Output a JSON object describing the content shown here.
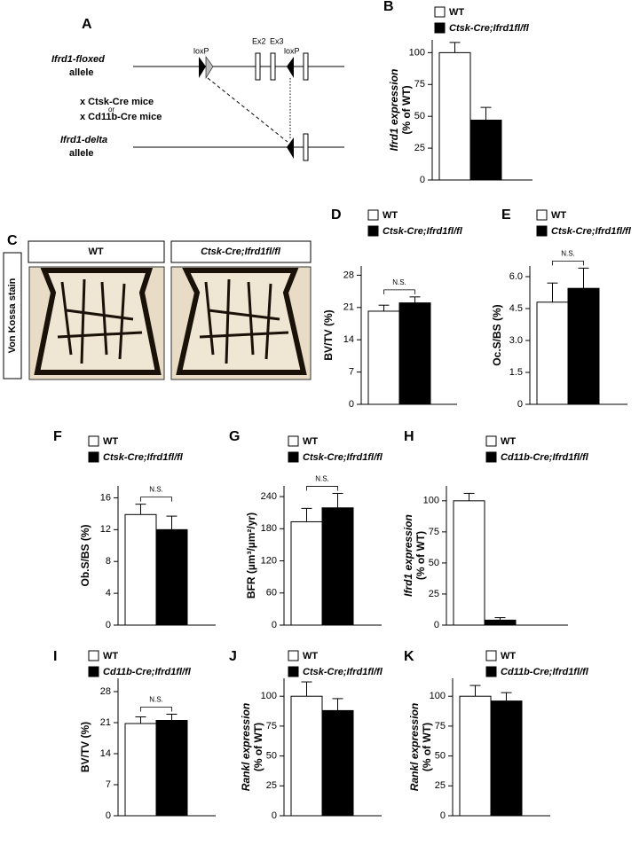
{
  "panel_a": {
    "label": "A",
    "floxed_allele": [
      "Ifrd1-floxed",
      "allele"
    ],
    "loxp": [
      "loxP",
      "loxP"
    ],
    "exons": [
      "Ex2",
      "Ex3"
    ],
    "crosses": [
      "x Ctsk-Cre mice",
      "or",
      "x Cd11b-Cre mice"
    ],
    "delta_allele": [
      "Ifrd1-delta",
      "allele"
    ]
  },
  "panel_c": {
    "label": "C",
    "stain": "Von Kossa stain",
    "images": [
      "WT",
      "Ctsk-Cre;Ifrd1fl/fl"
    ]
  },
  "chart_data": [
    {
      "type": "bar",
      "panel": "B",
      "ylabel": [
        "Ifrd1 expression",
        "(% of WT)"
      ],
      "ylim": [
        0,
        110
      ],
      "yticks": [
        0,
        25,
        50,
        75,
        100
      ],
      "series": [
        {
          "name": "WT",
          "color": "#ffffff",
          "values": [
            100
          ],
          "errors": [
            8
          ]
        },
        {
          "name": "Ctsk-Cre;Ifrd1fl/fl",
          "color": "#000000",
          "values": [
            47
          ],
          "errors": [
            10
          ]
        }
      ]
    },
    {
      "type": "bar",
      "panel": "D",
      "ylabel": "BV/TV (%)",
      "ylim": [
        0,
        30
      ],
      "yticks": [
        0,
        7,
        14,
        21,
        28
      ],
      "annotation": "N.S.",
      "series": [
        {
          "name": "WT",
          "color": "#ffffff",
          "values": [
            20.2
          ],
          "errors": [
            1.3
          ]
        },
        {
          "name": "Ctsk-Cre;Ifrd1fl/fl",
          "color": "#000000",
          "values": [
            22
          ],
          "errors": [
            1.3
          ]
        }
      ]
    },
    {
      "type": "bar",
      "panel": "E",
      "ylabel": "Oc.S/BS (%)",
      "ylim": [
        0,
        6.5
      ],
      "yticks": [
        0,
        1.5,
        {
          "value": 3,
          "label": "3.0"
        },
        4.5,
        {
          "value": 6,
          "label": "6.0"
        }
      ],
      "annotation": "N.S.",
      "series": [
        {
          "name": "WT",
          "color": "#ffffff",
          "values": [
            4.8
          ],
          "errors": [
            0.9
          ]
        },
        {
          "name": "Ctsk-Cre;Ifrd1fl/fl",
          "color": "#000000",
          "values": [
            5.45
          ],
          "errors": [
            0.95
          ]
        }
      ]
    },
    {
      "type": "bar",
      "panel": "F",
      "ylabel": "Ob.S/BS (%)",
      "ylim": [
        0,
        17.5
      ],
      "yticks": [
        0,
        4,
        8,
        12,
        16
      ],
      "annotation": "N.S.",
      "series": [
        {
          "name": "WT",
          "color": "#ffffff",
          "values": [
            13.9
          ],
          "errors": [
            1.3
          ]
        },
        {
          "name": "Ctsk-Cre;Ifrd1fl/fl",
          "color": "#000000",
          "values": [
            12
          ],
          "errors": [
            1.7
          ]
        }
      ]
    },
    {
      "type": "bar",
      "panel": "G",
      "ylabel": "BFR (µm³/µm²/yr)",
      "ylim": [
        0,
        260
      ],
      "yticks": [
        0,
        60,
        120,
        180,
        240
      ],
      "annotation": "N.S.",
      "series": [
        {
          "name": "WT",
          "color": "#ffffff",
          "values": [
            193
          ],
          "errors": [
            25
          ]
        },
        {
          "name": "Ctsk-Cre;Ifrd1fl/fl",
          "color": "#000000",
          "values": [
            219
          ],
          "errors": [
            27
          ]
        }
      ]
    },
    {
      "type": "bar",
      "panel": "H",
      "ylabel": [
        "Ifrd1 expression",
        "(% of WT)"
      ],
      "ylim": [
        0,
        112
      ],
      "yticks": [
        0,
        25,
        50,
        75,
        100
      ],
      "series": [
        {
          "name": "WT",
          "color": "#ffffff",
          "values": [
            100
          ],
          "errors": [
            6
          ]
        },
        {
          "name": "Cd11b-Cre;Ifrd1fl/fl",
          "color": "#000000",
          "values": [
            4
          ],
          "errors": [
            2
          ]
        }
      ]
    },
    {
      "type": "bar",
      "panel": "I",
      "ylabel": "BV/TV (%)",
      "ylim": [
        0,
        31
      ],
      "yticks": [
        0,
        7,
        14,
        21,
        28
      ],
      "annotation": "N.S.",
      "series": [
        {
          "name": "WT",
          "color": "#ffffff",
          "values": [
            20.8
          ],
          "errors": [
            1.5
          ]
        },
        {
          "name": "Cd11b-Cre;Ifrd1fl/fl",
          "color": "#000000",
          "values": [
            21.5
          ],
          "errors": [
            1.4
          ]
        }
      ]
    },
    {
      "type": "bar",
      "panel": "J",
      "ylabel": [
        "Rankl expression",
        "(% of WT)"
      ],
      "ylim": [
        0,
        115
      ],
      "yticks": [
        0,
        25,
        50,
        75,
        100
      ],
      "series": [
        {
          "name": "WT",
          "color": "#ffffff",
          "values": [
            100
          ],
          "errors": [
            12
          ]
        },
        {
          "name": "Ctsk-Cre;Ifrd1fl/fl",
          "color": "#000000",
          "values": [
            88
          ],
          "errors": [
            10
          ]
        }
      ]
    },
    {
      "type": "bar",
      "panel": "K",
      "ylabel": [
        "Rankl expression",
        "(% of WT)"
      ],
      "ylim": [
        0,
        115
      ],
      "yticks": [
        0,
        25,
        50,
        75,
        100
      ],
      "series": [
        {
          "name": "WT",
          "color": "#ffffff",
          "values": [
            100
          ],
          "errors": [
            9
          ]
        },
        {
          "name": "Cd11b-Cre;Ifrd1fl/fl",
          "color": "#000000",
          "values": [
            96
          ],
          "errors": [
            7
          ]
        }
      ]
    }
  ]
}
